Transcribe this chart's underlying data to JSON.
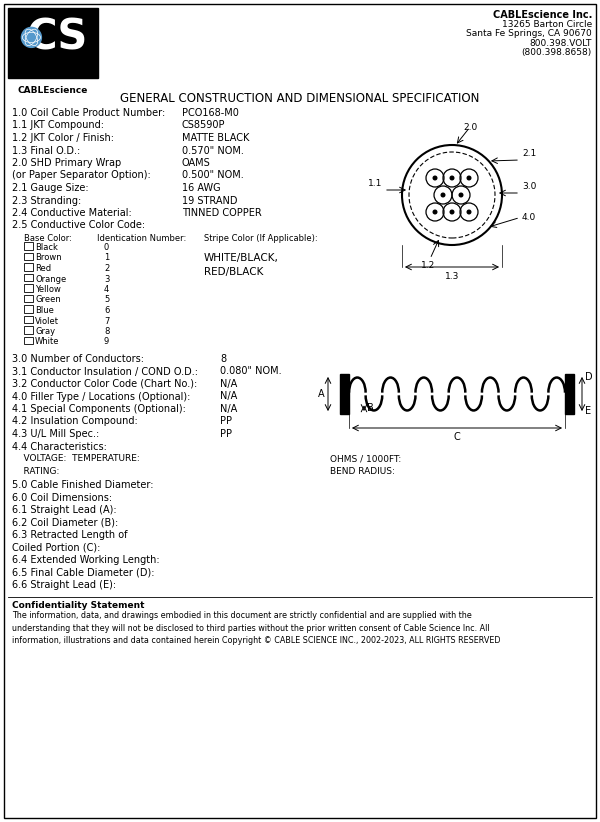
{
  "company_name": "CABLEscience Inc.",
  "company_address_lines": [
    "13265 Barton Circle",
    "Santa Fe Springs, CA 90670",
    "800.398.VOLT",
    "(800.398.8658)"
  ],
  "title": "GENERAL CONSTRUCTION AND DIMENSIONAL SPECIFICATION",
  "fields_left": [
    [
      "1.0 Coil Cable Product Number:",
      "PCO168-M0"
    ],
    [
      "1.1 JKT Compound:",
      "CS8590P"
    ],
    [
      "1.2 JKT Color / Finish:",
      "MATTE BLACK"
    ],
    [
      "1.3 Final O.D.:",
      "0.570\" NOM."
    ],
    [
      "2.0 SHD Primary Wrap",
      "OAMS"
    ],
    [
      "(or Paper Separator Option):",
      "0.500\" NOM."
    ],
    [
      "2.1 Gauge Size:",
      "16 AWG"
    ],
    [
      "2.3 Stranding:",
      "19 STRAND"
    ],
    [
      "2.4 Conductive Material:",
      "TINNED COPPER"
    ],
    [
      "2.5 Conductive Color Code:",
      ""
    ]
  ],
  "color_code_header": [
    "Base Color:",
    "Identication Number:",
    "Stripe Color (If Applicable):"
  ],
  "color_code_rows": [
    [
      "Black",
      "0"
    ],
    [
      "Brown",
      "1"
    ],
    [
      "Red",
      "2"
    ],
    [
      "Orange",
      "3"
    ],
    [
      "Yellow",
      "4"
    ],
    [
      "Green",
      "5"
    ],
    [
      "Blue",
      "6"
    ],
    [
      "Violet",
      "7"
    ],
    [
      "Gray",
      "8"
    ],
    [
      "White",
      "9"
    ]
  ],
  "stripe_colors": "WHITE/BLACK,\nRED/BLACK",
  "fields_bottom": [
    [
      "3.0 Number of Conductors:",
      "8"
    ],
    [
      "3.1 Conductor Insulation / COND O.D.:",
      "0.080\" NOM."
    ],
    [
      "3.2 Conductor Color Code (Chart No.):",
      "N/A"
    ],
    [
      "4.0 Filler Type / Locations (Optional):",
      "N/A"
    ],
    [
      "4.1 Special Components (Optional):",
      "N/A"
    ],
    [
      "4.2 Insulation Compound:",
      "PP"
    ],
    [
      "4.3 U/L Mill Spec.:",
      "PP"
    ],
    [
      "4.4 Characteristics:",
      ""
    ]
  ],
  "voltage_line": "    VOLTAGE:  TEMPERATURE:",
  "voltage_right": "OHMS / 1000FT:",
  "rating_line": "    RATING:",
  "rating_right": "BEND RADIUS:",
  "fields_lower": [
    "5.0 Cable Finished Diameter:",
    "6.0 Coil Dimensions:",
    "6.1 Straight Lead (A):",
    "6.2 Coil Diameter (B):",
    "6.3 Retracted Length of",
    "Coiled Portion (C):",
    "6.4 Extended Working Length:",
    "6.5 Final Cable Diameter (D):",
    "6.6 Straight Lead (E):"
  ],
  "confidentiality_title": "Confidentiality Statement",
  "confidentiality_body": "The information, data, and drawings embodied in this document are strictly confidential and are supplied with the\nunderstanding that they will not be disclosed to third parties without the prior written consent of Cable Science Inc. All\ninformation, illustrations and data contained herein Copyright © CABLE SCIENCE INC., 2002-2023, ALL RIGHTS RESERVED",
  "bg_color": "#ffffff"
}
